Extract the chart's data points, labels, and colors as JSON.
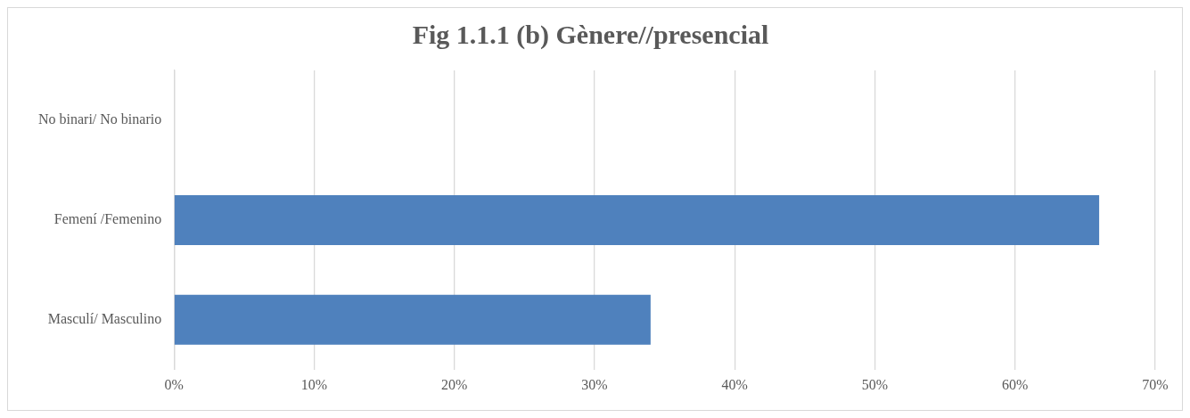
{
  "chart_data": {
    "type": "bar",
    "orientation": "horizontal",
    "title": "Fig 1.1.1 (b) Gènere//presencial",
    "categories": [
      "No binari/ No binario",
      "Femení /Femenino",
      "Masculí/ Masculino"
    ],
    "values": [
      0,
      66,
      34
    ],
    "color": "#4f81bd",
    "xlim": [
      0,
      70
    ],
    "xticks": [
      {
        "value": 0,
        "label": "0%"
      },
      {
        "value": 10,
        "label": "10%"
      },
      {
        "value": 20,
        "label": "20%"
      },
      {
        "value": 30,
        "label": "30%"
      },
      {
        "value": 40,
        "label": "40%"
      },
      {
        "value": 50,
        "label": "50%"
      },
      {
        "value": 60,
        "label": "60%"
      },
      {
        "value": 70,
        "label": "70%"
      }
    ],
    "grid": "x",
    "legend": false
  }
}
